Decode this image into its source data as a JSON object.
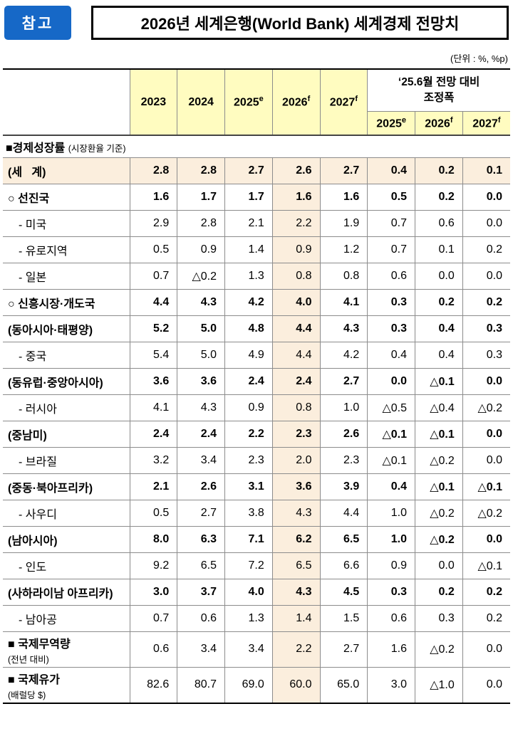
{
  "badge": "참고",
  "title": "2026년 세계은행(World Bank) 세계경제 전망치",
  "unit_note": "(단위 : %, %p)",
  "colors": {
    "badge-blue": "#1668c7",
    "header-yellow": "#fffcc0",
    "highlight-peach": "#fbeedd"
  },
  "table": {
    "year_headers": [
      {
        "label": "2023",
        "sup": ""
      },
      {
        "label": "2024",
        "sup": ""
      },
      {
        "label": "2025",
        "sup": "e"
      },
      {
        "label": "2026",
        "sup": "f"
      },
      {
        "label": "2027",
        "sup": "f"
      }
    ],
    "adjustment_group_header_line1": "‘25.6월 전망 대비",
    "adjustment_group_header_line2": "조정폭",
    "adjustment_subheaders": [
      {
        "label": "2025",
        "sup": "e"
      },
      {
        "label": "2026",
        "sup": "f"
      },
      {
        "label": "2027",
        "sup": "f"
      }
    ],
    "section_header": {
      "title": "■경제성장률",
      "note": "(시장환율 기준)"
    },
    "rows": [
      {
        "label": "(세   계)",
        "bold": true,
        "highlight": true,
        "indent": 0,
        "values": [
          "2.8",
          "2.8",
          "2.7",
          "2.6",
          "2.7",
          "0.4",
          "0.2",
          "0.1"
        ]
      },
      {
        "label": "○ 선진국",
        "bold": true,
        "indent": 0,
        "values": [
          "1.6",
          "1.7",
          "1.7",
          "1.6",
          "1.6",
          "0.5",
          "0.2",
          "0.0"
        ]
      },
      {
        "label": "- 미국",
        "bold": false,
        "indent": 1,
        "values": [
          "2.9",
          "2.8",
          "2.1",
          "2.2",
          "1.9",
          "0.7",
          "0.6",
          "0.0"
        ]
      },
      {
        "label": "- 유로지역",
        "bold": false,
        "indent": 1,
        "values": [
          "0.5",
          "0.9",
          "1.4",
          "0.9",
          "1.2",
          "0.7",
          "0.1",
          "0.2"
        ]
      },
      {
        "label": "- 일본",
        "bold": false,
        "indent": 1,
        "values": [
          "0.7",
          "△0.2",
          "1.3",
          "0.8",
          "0.8",
          "0.6",
          "0.0",
          "0.0"
        ]
      },
      {
        "label": "○ 신흥시장·개도국",
        "bold": true,
        "indent": 0,
        "values": [
          "4.4",
          "4.3",
          "4.2",
          "4.0",
          "4.1",
          "0.3",
          "0.2",
          "0.2"
        ]
      },
      {
        "label": "(동아시아·태평양)",
        "bold": true,
        "indent": 0,
        "values": [
          "5.2",
          "5.0",
          "4.8",
          "4.4",
          "4.3",
          "0.3",
          "0.4",
          "0.3"
        ]
      },
      {
        "label": "- 중국",
        "bold": false,
        "indent": 1,
        "values": [
          "5.4",
          "5.0",
          "4.9",
          "4.4",
          "4.2",
          "0.4",
          "0.4",
          "0.3"
        ]
      },
      {
        "label": "(동유럽·중앙아시아)",
        "bold": true,
        "indent": 0,
        "values": [
          "3.6",
          "3.6",
          "2.4",
          "2.4",
          "2.7",
          "0.0",
          "△0.1",
          "0.0"
        ]
      },
      {
        "label": "- 러시아",
        "bold": false,
        "indent": 1,
        "values": [
          "4.1",
          "4.3",
          "0.9",
          "0.8",
          "1.0",
          "△0.5",
          "△0.4",
          "△0.2"
        ]
      },
      {
        "label": "(중남미)",
        "bold": true,
        "indent": 0,
        "values": [
          "2.4",
          "2.4",
          "2.2",
          "2.3",
          "2.6",
          "△0.1",
          "△0.1",
          "0.0"
        ]
      },
      {
        "label": "- 브라질",
        "bold": false,
        "indent": 1,
        "values": [
          "3.2",
          "3.4",
          "2.3",
          "2.0",
          "2.3",
          "△0.1",
          "△0.2",
          "0.0"
        ]
      },
      {
        "label": "(중동·북아프리카)",
        "bold": true,
        "indent": 0,
        "values": [
          "2.1",
          "2.6",
          "3.1",
          "3.6",
          "3.9",
          "0.4",
          "△0.1",
          "△0.1"
        ]
      },
      {
        "label": "- 사우디",
        "bold": false,
        "indent": 1,
        "values": [
          "0.5",
          "2.7",
          "3.8",
          "4.3",
          "4.4",
          "1.0",
          "△0.2",
          "△0.2"
        ]
      },
      {
        "label": "(남아시아)",
        "bold": true,
        "indent": 0,
        "values": [
          "8.0",
          "6.3",
          "7.1",
          "6.2",
          "6.5",
          "1.0",
          "△0.2",
          "0.0"
        ]
      },
      {
        "label": "- 인도",
        "bold": false,
        "indent": 1,
        "values": [
          "9.2",
          "6.5",
          "7.2",
          "6.5",
          "6.6",
          "0.9",
          "0.0",
          "△0.1"
        ]
      },
      {
        "label": "(사하라이남 아프리카)",
        "bold": true,
        "indent": 0,
        "values": [
          "3.0",
          "3.7",
          "4.0",
          "4.3",
          "4.5",
          "0.3",
          "0.2",
          "0.2"
        ]
      },
      {
        "label": "- 남아공",
        "bold": false,
        "indent": 1,
        "values": [
          "0.7",
          "0.6",
          "1.3",
          "1.4",
          "1.5",
          "0.6",
          "0.3",
          "0.2"
        ]
      }
    ],
    "footer_rows": [
      {
        "label": "■ 국제무역량",
        "sublabel": "(전년 대비)",
        "values": [
          "0.6",
          "3.4",
          "3.4",
          "2.2",
          "2.7",
          "1.6",
          "△0.2",
          "0.0"
        ]
      },
      {
        "label": "■ 국제유가",
        "sublabel": "(배럴당 $)",
        "values": [
          "82.6",
          "80.7",
          "69.0",
          "60.0",
          "65.0",
          "3.0",
          "△1.0",
          "0.0"
        ]
      }
    ]
  }
}
